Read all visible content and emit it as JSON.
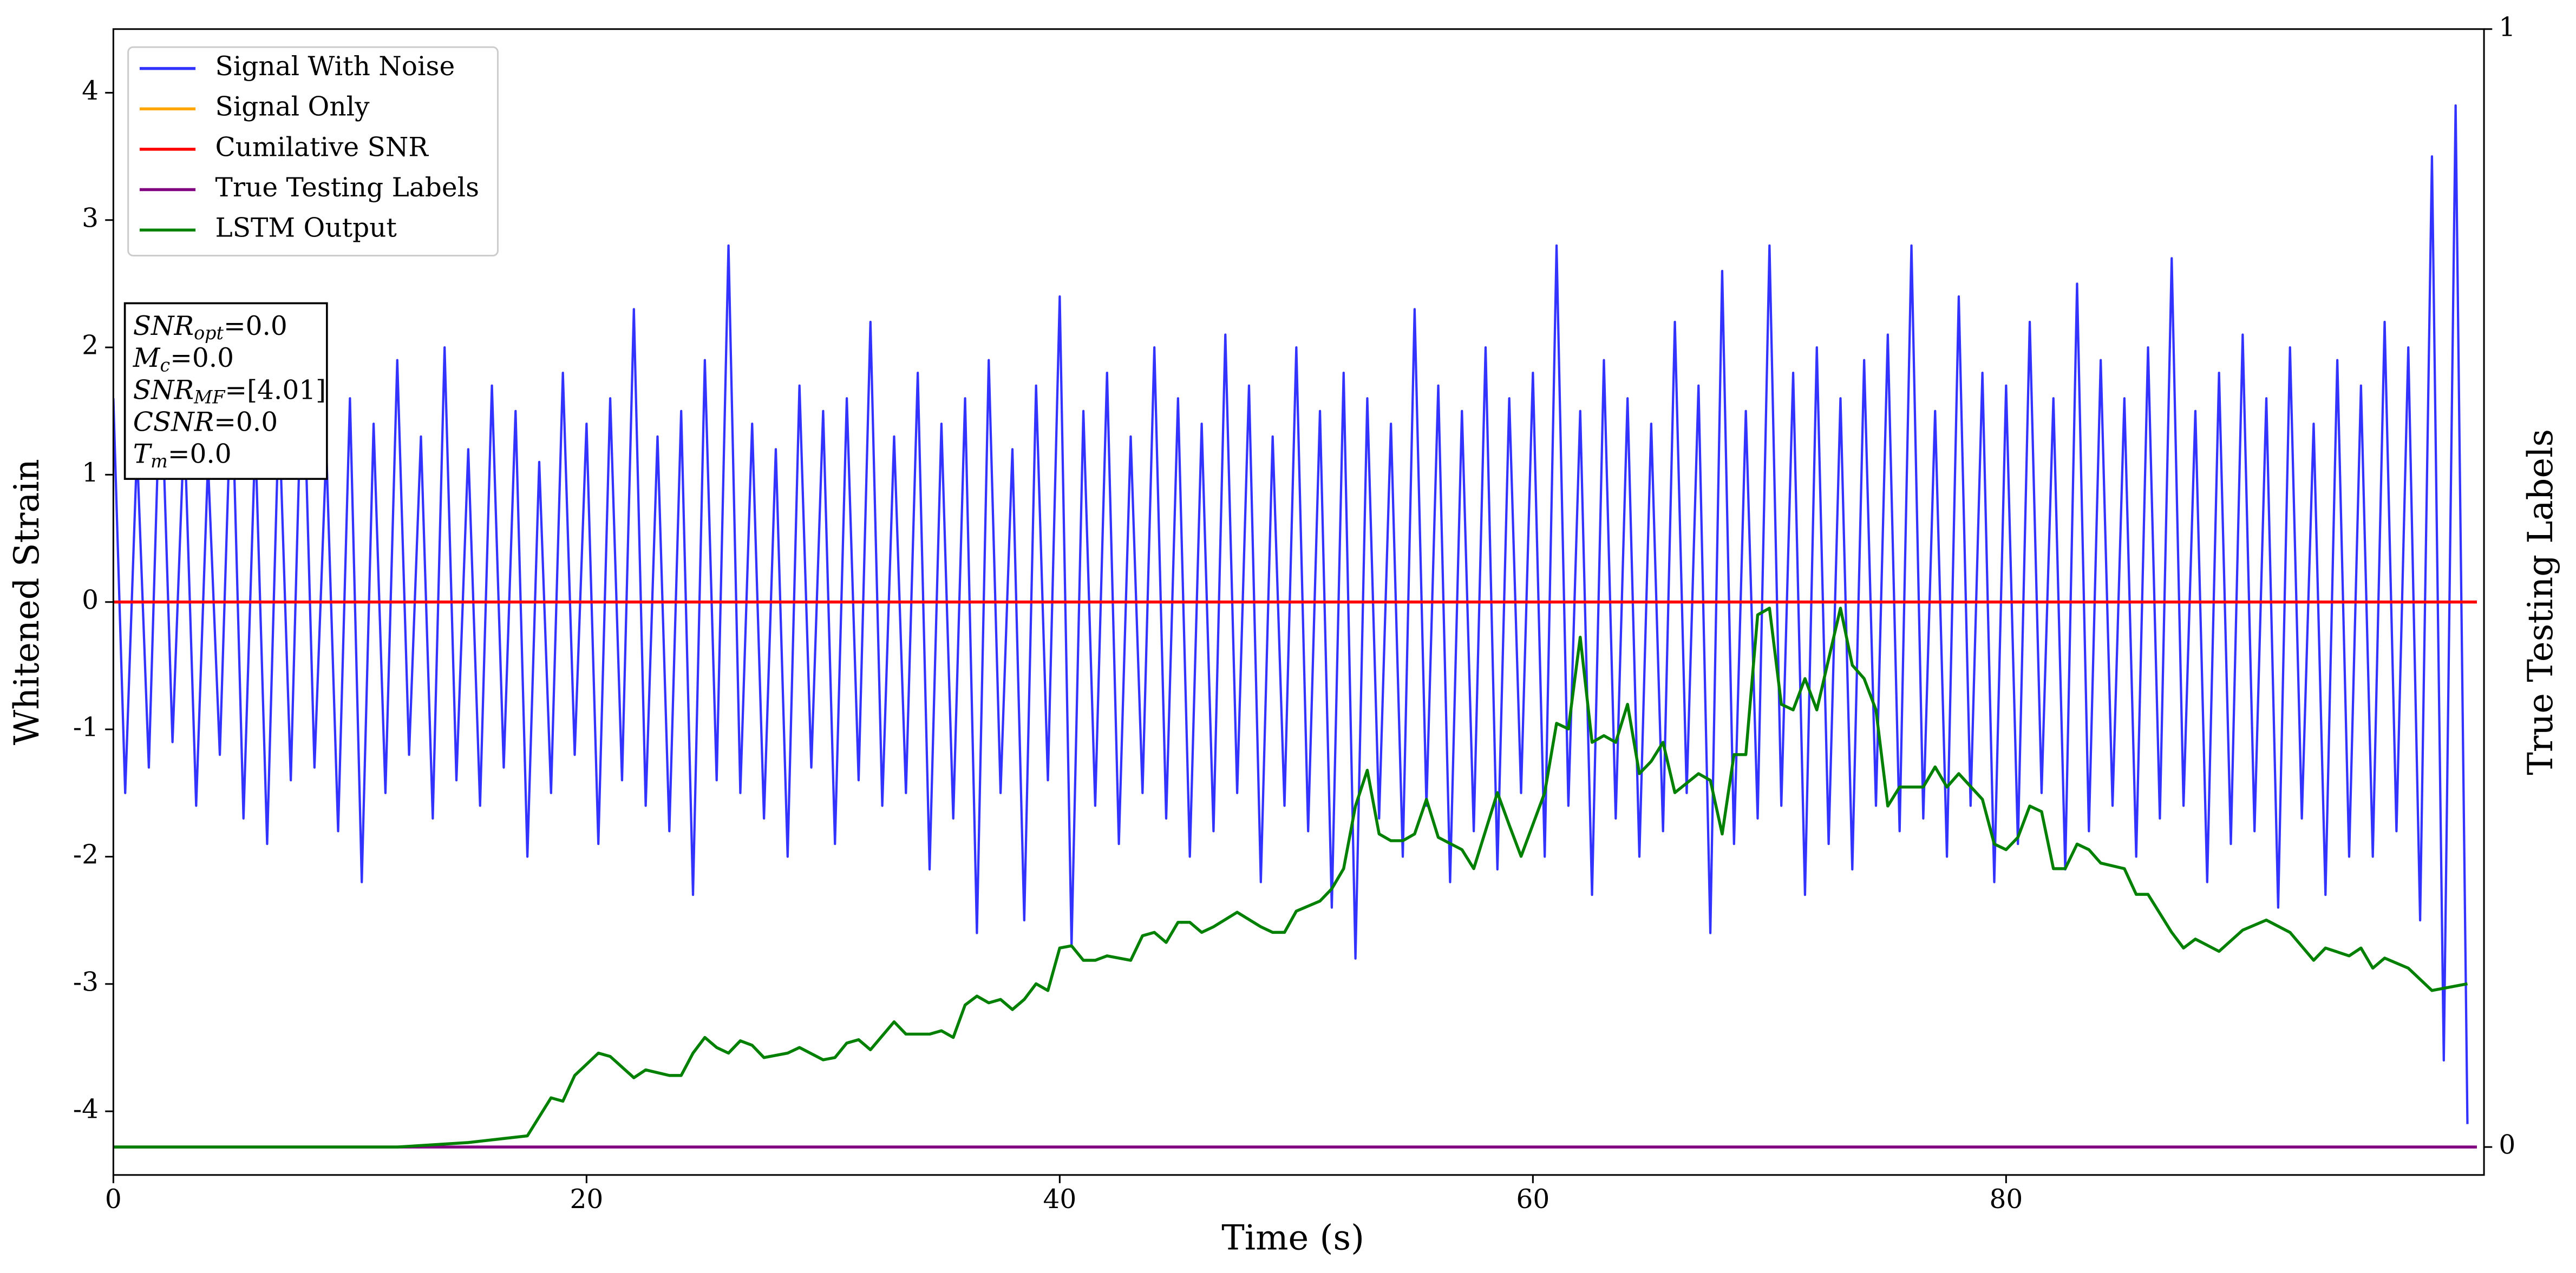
{
  "chart_data": {
    "type": "line",
    "xlabel": "Time (s)",
    "ylabel": "Whitened Strain",
    "y2label": "True Testing Labels",
    "xlim": [
      0,
      100.2
    ],
    "ylim": [
      -4.5,
      4.5
    ],
    "y2lim": [
      -0.025,
      1
    ],
    "xticks": [
      0,
      20,
      40,
      60,
      80
    ],
    "yticks": [
      -4,
      -3,
      -2,
      -1,
      0,
      1,
      2,
      3,
      4
    ],
    "y2ticks": [
      0,
      1
    ],
    "legend": "upper left",
    "annotation": [
      {
        "symbol": "SNR",
        "subscript": "opt",
        "text": "=0.0"
      },
      {
        "symbol": "M",
        "subscript": "c",
        "text": "=0.0"
      },
      {
        "symbol": "SNR",
        "subscript": "MF",
        "text": "=[4.01]"
      },
      {
        "symbol": "CSNR",
        "text": "=0.0"
      },
      {
        "symbol": "T",
        "subscript": "m",
        "text": "=0.0"
      }
    ],
    "series": [
      {
        "name": "Signal With Noise",
        "color": "#3333ff",
        "x": [
          0,
          0.5,
          1,
          1.5,
          2,
          2.5,
          3,
          3.5,
          4,
          4.5,
          5,
          5.5,
          6,
          6.5,
          7,
          7.5,
          8,
          8.5,
          9,
          9.5,
          10,
          10.5,
          11,
          11.5,
          12,
          12.5,
          13,
          13.5,
          14,
          14.5,
          15,
          15.5,
          16,
          16.5,
          17,
          17.5,
          18,
          18.5,
          19,
          19.5,
          20,
          20.5,
          21,
          21.5,
          22,
          22.5,
          23,
          23.5,
          24,
          24.5,
          25,
          25.5,
          26,
          26.5,
          27,
          27.5,
          28,
          28.5,
          29,
          29.5,
          30,
          30.5,
          31,
          31.5,
          32,
          32.5,
          33,
          33.5,
          34,
          34.5,
          35,
          35.5,
          36,
          36.5,
          37,
          37.5,
          38,
          38.5,
          39,
          39.5,
          40,
          40.5,
          41,
          41.5,
          42,
          42.5,
          43,
          43.5,
          44,
          44.5,
          45,
          45.5,
          46,
          46.5,
          47,
          47.5,
          48,
          48.5,
          49,
          49.5,
          50,
          50.5,
          51,
          51.5,
          52,
          52.5,
          53,
          53.5,
          54,
          54.5,
          55,
          55.5,
          56,
          56.5,
          57,
          57.5,
          58,
          58.5,
          59,
          59.5,
          60,
          60.5,
          61,
          61.5,
          62,
          62.5,
          63,
          63.5,
          64,
          64.5,
          65,
          65.5,
          66,
          66.5,
          67,
          67.5,
          68,
          68.5,
          69,
          69.5,
          70,
          70.5,
          71,
          71.5,
          72,
          72.5,
          73,
          73.5,
          74,
          74.5,
          75,
          75.5,
          76,
          76.5,
          77,
          77.5,
          78,
          78.5,
          79,
          79.5,
          80,
          80.5,
          81,
          81.5,
          82,
          82.5,
          83,
          83.5,
          84,
          84.5,
          85,
          85.5,
          86,
          86.5,
          87,
          87.5,
          88,
          88.5,
          89,
          89.5,
          90,
          90.5,
          91,
          91.5,
          92,
          92.5,
          93,
          93.5,
          94,
          94.5,
          95,
          95.5,
          96,
          96.5,
          97,
          97.5,
          98,
          98.5,
          99,
          99.5
        ],
        "values": [
          1.6,
          -1.5,
          1.2,
          -1.3,
          1.9,
          -1.1,
          1.4,
          -1.6,
          1.1,
          -1.2,
          1.8,
          -1.7,
          1.3,
          -1.9,
          1.5,
          -1.4,
          2.1,
          -1.3,
          1.2,
          -1.8,
          1.6,
          -2.2,
          1.4,
          -1.5,
          1.9,
          -1.2,
          1.3,
          -1.7,
          2.0,
          -1.4,
          1.2,
          -1.6,
          1.7,
          -1.3,
          1.5,
          -2.0,
          1.1,
          -1.5,
          1.8,
          -1.2,
          1.4,
          -1.9,
          1.6,
          -1.4,
          2.3,
          -1.6,
          1.3,
          -1.8,
          1.5,
          -2.3,
          1.9,
          -1.4,
          2.8,
          -1.5,
          1.4,
          -1.7,
          1.2,
          -2.0,
          1.7,
          -1.3,
          1.5,
          -1.9,
          1.6,
          -1.4,
          2.2,
          -1.6,
          1.3,
          -1.5,
          1.8,
          -2.1,
          1.4,
          -1.7,
          1.6,
          -2.6,
          1.9,
          -1.5,
          1.2,
          -2.5,
          1.7,
          -1.4,
          2.4,
          -2.7,
          1.5,
          -1.6,
          1.8,
          -1.9,
          1.3,
          -1.5,
          2.0,
          -1.7,
          1.6,
          -2.0,
          1.4,
          -1.8,
          2.1,
          -1.5,
          1.7,
          -2.2,
          1.3,
          -1.6,
          2.0,
          -1.8,
          1.5,
          -2.4,
          1.8,
          -2.8,
          1.6,
          -1.7,
          1.4,
          -2.0,
          2.3,
          -1.6,
          1.7,
          -2.2,
          1.5,
          -1.8,
          2.0,
          -2.1,
          1.6,
          -1.5,
          1.8,
          -2.0,
          2.8,
          -1.6,
          1.5,
          -2.3,
          1.9,
          -1.7,
          1.6,
          -2.0,
          1.4,
          -1.8,
          2.2,
          -1.5,
          1.7,
          -2.6,
          2.6,
          -1.9,
          1.5,
          -1.7,
          2.8,
          -1.6,
          1.8,
          -2.3,
          2.0,
          -1.9,
          1.6,
          -2.1,
          1.9,
          -1.6,
          2.1,
          -1.8,
          2.8,
          -1.7,
          1.5,
          -2.0,
          2.4,
          -1.6,
          1.8,
          -2.2,
          1.7,
          -1.9,
          2.2,
          -1.5,
          1.6,
          -2.1,
          2.5,
          -1.8,
          1.9,
          -1.6,
          1.6,
          -2.0,
          2.0,
          -1.7,
          2.7,
          -1.6,
          1.5,
          -2.2,
          1.8,
          -1.9,
          2.1,
          -1.8,
          1.6,
          -2.4,
          2.0,
          -1.7,
          1.4,
          -2.3,
          1.9,
          -2.0,
          1.7,
          -2.0,
          2.2,
          -1.8,
          2.0,
          -2.5,
          3.5,
          -3.6,
          3.9,
          -4.1
        ]
      },
      {
        "name": "Signal Only",
        "color": "orange",
        "x": [
          0,
          99.9
        ],
        "values": [
          0,
          0
        ]
      },
      {
        "name": "Cumilative SNR",
        "color": "red",
        "x": [
          0,
          99.9
        ],
        "values": [
          0,
          0
        ]
      },
      {
        "name": "True Testing Labels",
        "color": "purple",
        "axis": "y2",
        "x": [
          0,
          99.9
        ],
        "values": [
          0,
          0
        ]
      },
      {
        "name": "LSTM Output",
        "color": "green",
        "axis": "y2",
        "x": [
          0,
          12,
          15,
          17.5,
          18.5,
          19,
          19.5,
          20.5,
          21,
          22,
          22.5,
          23.5,
          24,
          24.5,
          25,
          25.5,
          26,
          26.5,
          27,
          27.5,
          28.5,
          29,
          30,
          30.5,
          31,
          31.5,
          32,
          33,
          33.5,
          34.5,
          35,
          35.5,
          36,
          36.5,
          37,
          37.5,
          38,
          38.5,
          39,
          39.5,
          40,
          40.5,
          41,
          41.5,
          42,
          43,
          43.5,
          44,
          44.5,
          45,
          45.5,
          46,
          46.5,
          47.5,
          48.5,
          49,
          49.5,
          50,
          51,
          51.5,
          52,
          52.5,
          53,
          53.5,
          54,
          54.5,
          55,
          55.5,
          56,
          57,
          57.5,
          58.5,
          59,
          59.5,
          60.5,
          61,
          61.5,
          62,
          62.5,
          63,
          63.5,
          64,
          64.5,
          65,
          65.5,
          66,
          67,
          67.5,
          68,
          68.5,
          69,
          69.5,
          70,
          70.5,
          71,
          71.5,
          72,
          73,
          73.5,
          74,
          74.5,
          75,
          75.5,
          76.5,
          77,
          77.5,
          78,
          79,
          79.5,
          80,
          80.5,
          81,
          81.5,
          82,
          82.5,
          83,
          83.5,
          84,
          85,
          85.5,
          86,
          87,
          87.5,
          88,
          89,
          90,
          91,
          92,
          93,
          93.5,
          94.5,
          95,
          95.5,
          96,
          97,
          98,
          99.5
        ],
        "values": [
          0,
          0,
          0.004,
          0.01,
          0.044,
          0.041,
          0.064,
          0.084,
          0.081,
          0.062,
          0.069,
          0.064,
          0.064,
          0.084,
          0.098,
          0.089,
          0.084,
          0.095,
          0.091,
          0.08,
          0.084,
          0.089,
          0.078,
          0.08,
          0.093,
          0.096,
          0.087,
          0.112,
          0.101,
          0.101,
          0.104,
          0.098,
          0.127,
          0.135,
          0.129,
          0.132,
          0.123,
          0.132,
          0.146,
          0.14,
          0.178,
          0.18,
          0.167,
          0.167,
          0.171,
          0.167,
          0.189,
          0.192,
          0.183,
          0.201,
          0.201,
          0.192,
          0.197,
          0.21,
          0.197,
          0.192,
          0.192,
          0.211,
          0.22,
          0.231,
          0.249,
          0.305,
          0.337,
          0.28,
          0.274,
          0.274,
          0.28,
          0.311,
          0.277,
          0.266,
          0.249,
          0.317,
          0.288,
          0.26,
          0.317,
          0.379,
          0.374,
          0.456,
          0.362,
          0.368,
          0.362,
          0.396,
          0.334,
          0.345,
          0.362,
          0.317,
          0.334,
          0.328,
          0.28,
          0.351,
          0.351,
          0.476,
          0.482,
          0.396,
          0.391,
          0.419,
          0.391,
          0.482,
          0.431,
          0.419,
          0.391,
          0.305,
          0.322,
          0.322,
          0.34,
          0.322,
          0.334,
          0.311,
          0.271,
          0.266,
          0.277,
          0.305,
          0.3,
          0.249,
          0.249,
          0.271,
          0.266,
          0.254,
          0.249,
          0.226,
          0.226,
          0.192,
          0.178,
          0.186,
          0.175,
          0.194,
          0.203,
          0.192,
          0.167,
          0.178,
          0.171,
          0.178,
          0.16,
          0.169,
          0.16,
          0.14,
          0.146
        ]
      }
    ]
  }
}
